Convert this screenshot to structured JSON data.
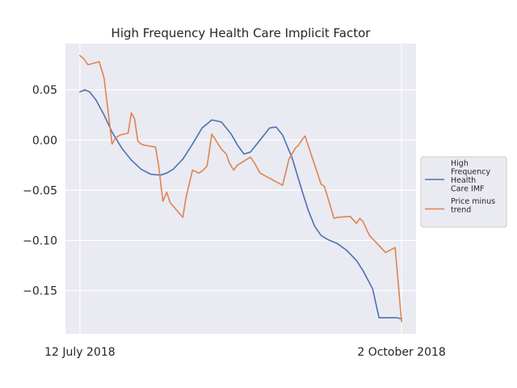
{
  "chart_data": {
    "type": "line",
    "title": "High Frequency Health Care Implicit Factor",
    "xlabel": "",
    "ylabel": "",
    "x_tick_labels": [
      "12 July 2018",
      "2 October 2018"
    ],
    "x_ticks": [
      0,
      1
    ],
    "y_ticks": [
      0.05,
      0.0,
      -0.05,
      -0.1,
      -0.15
    ],
    "y_tick_labels": [
      "0.05",
      "0.00",
      "−0.05",
      "−0.10",
      "−0.15"
    ],
    "xlim": [
      -0.045,
      1.045
    ],
    "ylim": [
      -0.193,
      0.096
    ],
    "grid": true,
    "legend_position": "right",
    "series": [
      {
        "name": "High Frequency Health Care IMF",
        "legend_lines": [
          "High",
          "Frequency",
          "Health",
          "Care IMF"
        ],
        "color": "#4c72b0",
        "x": [
          0,
          0.015,
          0.03,
          0.05,
          0.075,
          0.1,
          0.13,
          0.16,
          0.19,
          0.22,
          0.25,
          0.27,
          0.29,
          0.32,
          0.35,
          0.38,
          0.41,
          0.44,
          0.47,
          0.49,
          0.51,
          0.53,
          0.56,
          0.59,
          0.61,
          0.63,
          0.66,
          0.69,
          0.71,
          0.73,
          0.75,
          0.77,
          0.8,
          0.83,
          0.86,
          0.88,
          0.91,
          0.93,
          0.95,
          0.97,
          0.985,
          1.0
        ],
        "values": [
          0.048,
          0.05,
          0.048,
          0.04,
          0.025,
          0.008,
          -0.008,
          -0.02,
          -0.029,
          -0.034,
          -0.035,
          -0.033,
          -0.029,
          -0.019,
          -0.004,
          0.012,
          0.02,
          0.018,
          0.006,
          -0.005,
          -0.014,
          -0.012,
          0.0,
          0.012,
          0.013,
          0.005,
          -0.018,
          -0.05,
          -0.07,
          -0.086,
          -0.095,
          -0.099,
          -0.103,
          -0.11,
          -0.12,
          -0.13,
          -0.148,
          -0.177,
          -0.177,
          -0.177,
          -0.177,
          -0.178
        ]
      },
      {
        "name": "Price minus trend",
        "legend_lines": [
          "Price minus",
          "trend"
        ],
        "color": "#dd8452",
        "x": [
          0,
          0.012,
          0.025,
          0.06,
          0.075,
          0.09,
          0.1,
          0.11,
          0.125,
          0.15,
          0.16,
          0.17,
          0.18,
          0.19,
          0.2,
          0.235,
          0.245,
          0.258,
          0.27,
          0.28,
          0.32,
          0.33,
          0.35,
          0.37,
          0.383,
          0.395,
          0.4,
          0.41,
          0.44,
          0.455,
          0.465,
          0.478,
          0.49,
          0.53,
          0.545,
          0.56,
          0.63,
          0.65,
          0.67,
          0.68,
          0.69,
          0.7,
          0.75,
          0.76,
          0.79,
          0.8,
          0.84,
          0.86,
          0.87,
          0.88,
          0.9,
          0.93,
          0.95,
          0.98,
          1.0
        ],
        "values": [
          0.084,
          0.081,
          0.075,
          0.078,
          0.062,
          0.022,
          -0.004,
          0.002,
          0.005,
          0.007,
          0.027,
          0.021,
          -0.001,
          -0.004,
          -0.005,
          -0.007,
          -0.026,
          -0.061,
          -0.052,
          -0.062,
          -0.077,
          -0.057,
          -0.03,
          -0.033,
          -0.03,
          -0.026,
          -0.016,
          0.006,
          -0.009,
          -0.014,
          -0.023,
          -0.03,
          -0.025,
          -0.017,
          -0.024,
          -0.033,
          -0.045,
          -0.019,
          -0.008,
          -0.005,
          0.0,
          0.004,
          -0.044,
          -0.046,
          -0.078,
          -0.077,
          -0.076,
          -0.083,
          -0.078,
          -0.081,
          -0.095,
          -0.105,
          -0.112,
          -0.107,
          -0.181
        ]
      }
    ]
  }
}
